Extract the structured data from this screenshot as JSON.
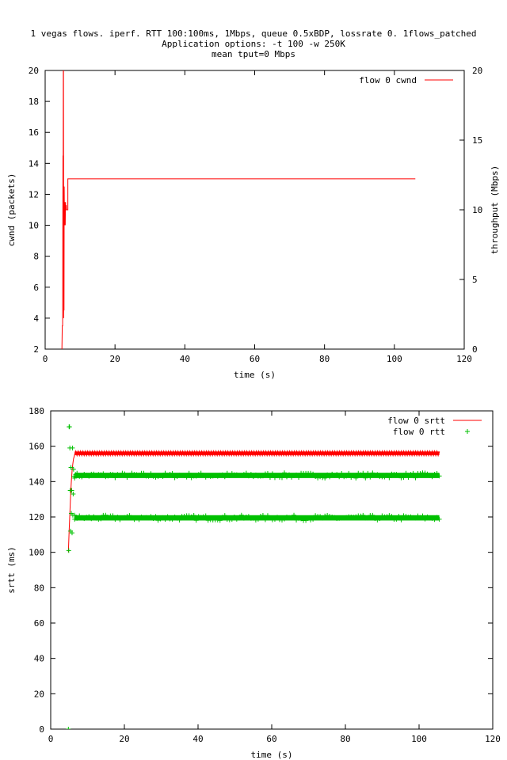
{
  "title_lines": [
    "1 vegas flows. iperf. RTT 100:100ms, 1Mbps, queue 0.5xBDP, lossrate 0. 1flows_patched",
    "Application options: -t 100 -w 250K",
    "mean tput=0 Mbps"
  ],
  "chart_data": [
    {
      "type": "line",
      "xlabel": "time (s)",
      "ylabel": "cwnd (packets)",
      "y2label": "throughput (Mbps)",
      "xlim": [
        0,
        120
      ],
      "ylim": [
        2,
        20
      ],
      "y2lim": [
        0,
        20
      ],
      "xticks": [
        0,
        20,
        40,
        60,
        80,
        100,
        120
      ],
      "yticks": [
        2,
        4,
        6,
        8,
        10,
        12,
        14,
        16,
        18,
        20
      ],
      "y2ticks": [
        0,
        5,
        10,
        15,
        20
      ],
      "grid": false,
      "legend_position": "top-right",
      "series": [
        {
          "name": "flow 0 cwnd",
          "color": "#ff0000",
          "style": "line",
          "x": [
            4.8,
            4.9,
            5.0,
            5.1,
            5.15,
            5.2,
            5.25,
            5.3,
            5.35,
            5.4,
            5.45,
            5.5,
            5.55,
            5.6,
            5.65,
            5.7,
            5.75,
            5.8,
            5.85,
            5.9,
            5.95,
            6.0,
            6.05,
            6.1,
            6.15,
            6.2,
            6.3,
            6.4,
            6.5,
            6.5,
            106
          ],
          "y": [
            2,
            3.5,
            3.5,
            14.5,
            12.5,
            20,
            20,
            4,
            6,
            4.5,
            12.5,
            11,
            10,
            11.5,
            10.5,
            11,
            10,
            11,
            11.5,
            11,
            11,
            11,
            11.3,
            11,
            11,
            11,
            11,
            11,
            11,
            13,
            13
          ]
        }
      ]
    },
    {
      "type": "scatter",
      "xlabel": "time (s)",
      "ylabel": "srtt (ms)",
      "xlim": [
        0,
        120
      ],
      "ylim": [
        0,
        180
      ],
      "xticks": [
        0,
        20,
        40,
        60,
        80,
        100,
        120
      ],
      "yticks": [
        0,
        20,
        40,
        60,
        80,
        100,
        120,
        140,
        160,
        180
      ],
      "grid": false,
      "legend_position": "top-right",
      "series": [
        {
          "name": "flow 0 srtt",
          "color": "#ff0000",
          "style": "line",
          "band": {
            "x_start": 6.5,
            "x_end": 105.5,
            "y_low": 155,
            "y_high": 157
          },
          "x": [
            4.8,
            5.0,
            5.2,
            5.4,
            5.6,
            5.8,
            6.0,
            6.2,
            6.5
          ],
          "y": [
            100,
            112,
            122,
            132,
            140,
            146,
            150,
            153,
            155
          ]
        },
        {
          "name": "flow 0 rtt",
          "color": "#00c000",
          "style": "points",
          "bands": [
            {
              "x_start": 6.5,
              "x_end": 105.5,
              "y_low": 142,
              "y_high": 145
            },
            {
              "x_start": 6.5,
              "x_end": 105.5,
              "y_low": 118,
              "y_high": 121
            }
          ],
          "x": [
            4.8,
            4.9,
            5.0,
            5.1,
            5.2,
            5.3,
            5.4,
            5.5,
            5.6,
            5.7,
            5.8,
            5.9,
            6.0,
            6.1,
            6.2,
            6.3,
            6.5,
            6.8
          ],
          "y": [
            0,
            101,
            171,
            171,
            159,
            135,
            112,
            148,
            122,
            135,
            111,
            159,
            121,
            133,
            147,
            143,
            121,
            144
          ]
        }
      ]
    }
  ]
}
